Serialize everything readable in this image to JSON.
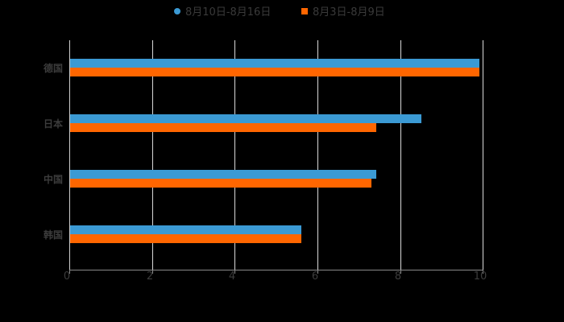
{
  "legend": {
    "items": [
      {
        "label": "8月10日-8月16日",
        "color": "#3b9ad4",
        "shape": "circle"
      },
      {
        "label": "8月3日-8月9日",
        "color": "#ff6600",
        "shape": "square"
      }
    ]
  },
  "axis": {
    "x_ticks": [
      "0",
      "2",
      "4",
      "6",
      "8",
      "10"
    ],
    "categories": [
      "德国",
      "日本",
      "中国",
      "韩国"
    ]
  },
  "chart_data": {
    "type": "bar",
    "orientation": "horizontal",
    "title": "",
    "xlabel": "",
    "ylabel": "",
    "categories": [
      "德国",
      "日本",
      "中国",
      "韩国"
    ],
    "series": [
      {
        "name": "8月10日-8月16日",
        "color": "#3b9ad4",
        "values": [
          9.9,
          8.5,
          7.4,
          5.6
        ]
      },
      {
        "name": "8月3日-8月9日",
        "color": "#ff6600",
        "values": [
          9.9,
          7.4,
          7.3,
          5.6
        ]
      }
    ],
    "xlim": [
      0,
      10
    ],
    "x_ticks": [
      0,
      2,
      4,
      6,
      8,
      10
    ],
    "grid": "vertical",
    "legend_position": "top"
  }
}
